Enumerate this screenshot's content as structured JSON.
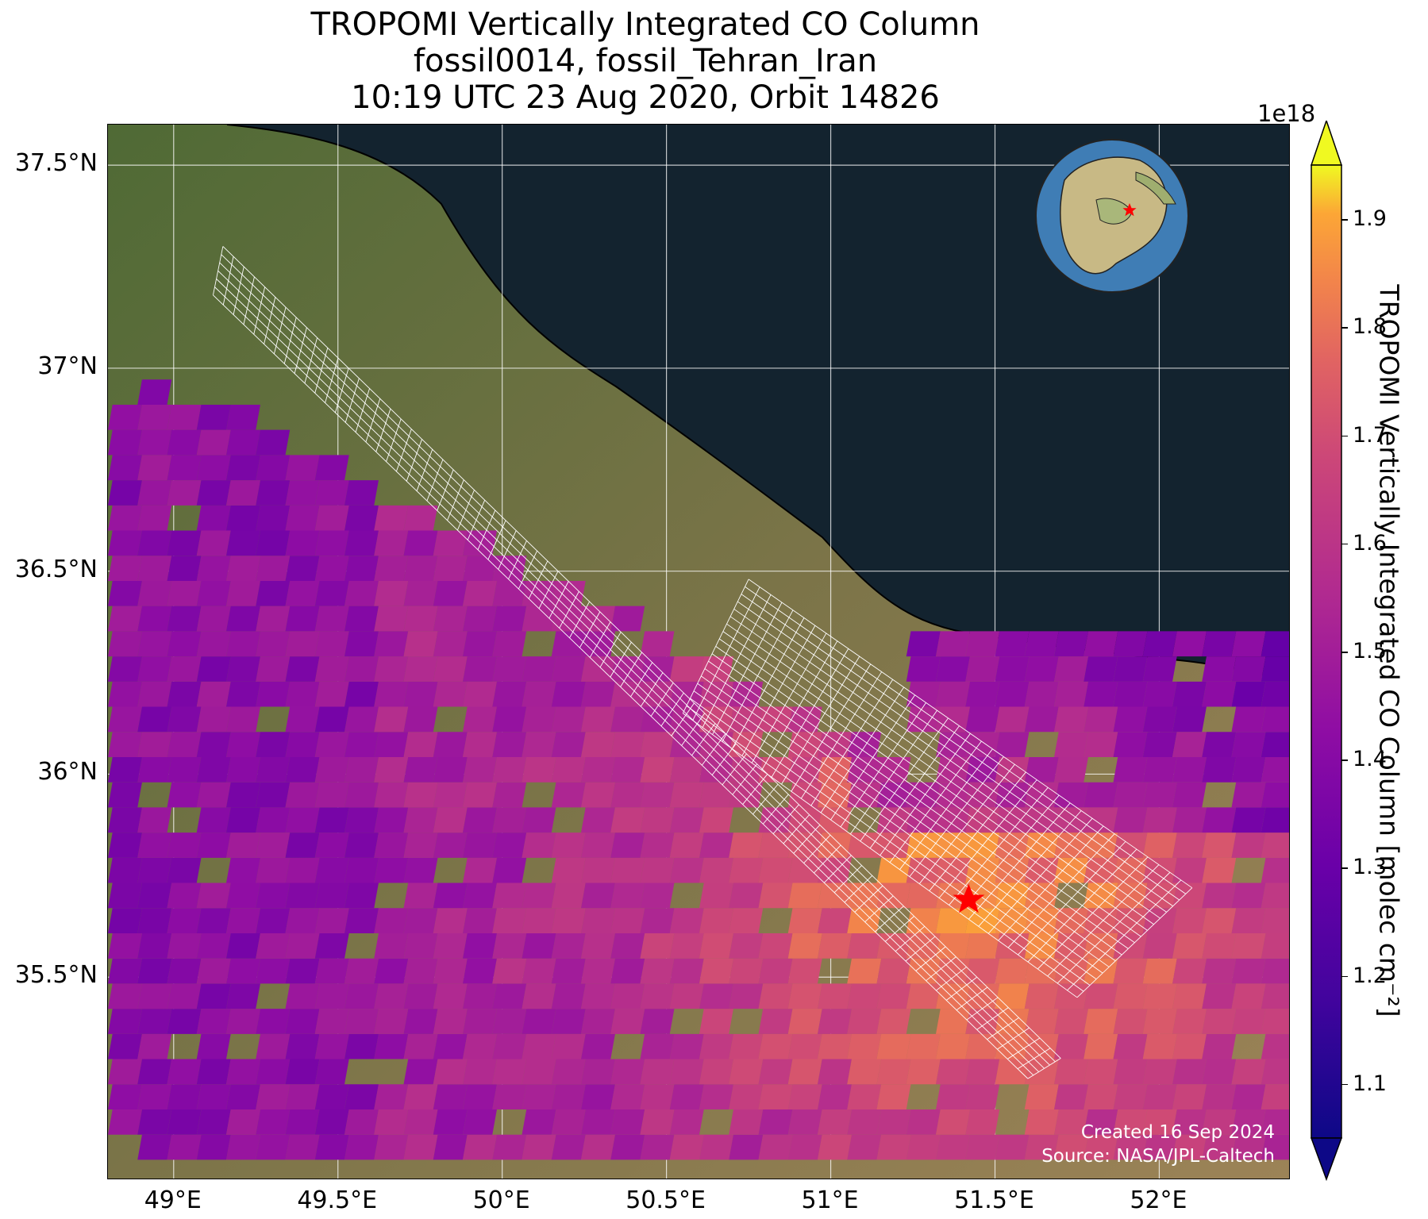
{
  "title": {
    "line1": "TROPOMI Vertically Integrated CO Column",
    "line2": "fossil0014, fossil_Tehran_Iran",
    "line3": "10:19 UTC 23 Aug 2020, Orbit 14826"
  },
  "map": {
    "extent": {
      "lon_min": 48.8,
      "lon_max": 52.4,
      "lat_min": 35.0,
      "lat_max": 37.6
    },
    "x_ticks": [
      {
        "value": 49.0,
        "label": "49°E"
      },
      {
        "value": 49.5,
        "label": "49.5°E"
      },
      {
        "value": 50.0,
        "label": "50°E"
      },
      {
        "value": 50.5,
        "label": "50.5°E"
      },
      {
        "value": 51.0,
        "label": "51°E"
      },
      {
        "value": 51.5,
        "label": "51.5°E"
      },
      {
        "value": 52.0,
        "label": "52°E"
      }
    ],
    "y_ticks": [
      {
        "value": 37.5,
        "label": "37.5°N"
      },
      {
        "value": 37.0,
        "label": "37°N"
      },
      {
        "value": 36.5,
        "label": "36.5°N"
      },
      {
        "value": 36.0,
        "label": "36°N"
      },
      {
        "value": 35.5,
        "label": "35.5°N"
      }
    ],
    "gridlines": true,
    "basemap": "satellite imagery",
    "target": {
      "name": "fossil_Tehran_Iran",
      "lon": 51.42,
      "lat": 35.69,
      "marker": "red-star"
    },
    "target_area_grid": "white grid polygon over Tehran region and along track",
    "inset_globe": {
      "center_region": "Middle East",
      "marker": "red-star",
      "position": "top-right"
    },
    "credit": {
      "line1": "Created 16 Sep 2024",
      "line2": "Source: NASA/JPL-Caltech"
    }
  },
  "colorbar": {
    "label": "TROPOMI Vertically Integrated CO Column [molec cm⁻²]",
    "multiplier": "1e18",
    "colormap": "plasma",
    "vmin": 1.05,
    "vmax": 1.95,
    "extend": "both",
    "ticks": [
      {
        "value": 1.1,
        "label": "1.1"
      },
      {
        "value": 1.2,
        "label": "1.2"
      },
      {
        "value": 1.3,
        "label": "1.3"
      },
      {
        "value": 1.4,
        "label": "1.4"
      },
      {
        "value": 1.5,
        "label": "1.5"
      },
      {
        "value": 1.6,
        "label": "1.6"
      },
      {
        "value": 1.7,
        "label": "1.7"
      },
      {
        "value": 1.8,
        "label": "1.8"
      },
      {
        "value": 1.9,
        "label": "1.9"
      }
    ]
  },
  "chart_data": {
    "type": "heatmap",
    "title": "TROPOMI Vertically Integrated CO Column",
    "units": "molec cm⁻² (×1e18)",
    "field": "approximate CO column over satellite swath, low over NE (~1.15–1.3), high near Tehran (~1.8–1.9), mid elsewhere (~1.5–1.7)",
    "target_value_approx": 1.85
  }
}
